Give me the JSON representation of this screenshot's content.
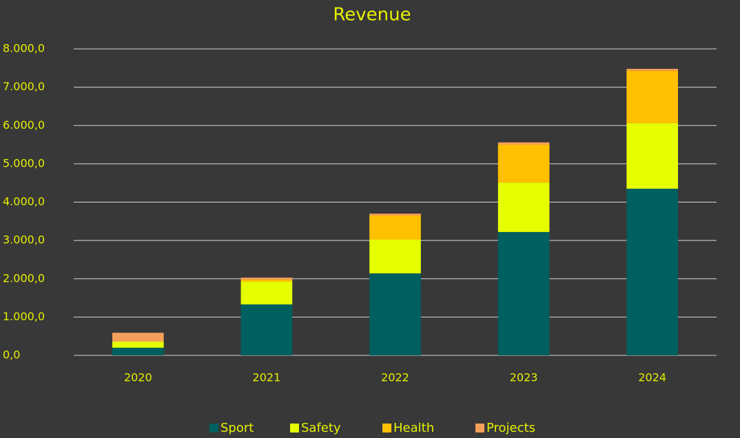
{
  "chart_data": {
    "type": "stacked_bar",
    "title": "Revenue",
    "categories": [
      "2020",
      "2021",
      "2022",
      "2023",
      "2024"
    ],
    "series": [
      {
        "name": "Sport",
        "color": "#005f5f",
        "values": [
          200,
          1330,
          2140,
          3220,
          4350
        ]
      },
      {
        "name": "Safety",
        "color": "#e5ff00",
        "values": [
          160,
          595,
          880,
          1290,
          1710
        ]
      },
      {
        "name": "Health",
        "color": "#ffc000",
        "values": [
          0,
          55,
          630,
          990,
          1370
        ]
      },
      {
        "name": "Projects",
        "color": "#f4a05a",
        "values": [
          230,
          50,
          50,
          60,
          50
        ]
      }
    ],
    "ylim": [
      0,
      8000
    ],
    "yticks": [
      {
        "value": 0,
        "label": "0,0"
      },
      {
        "value": 1000,
        "label": "1.000,0"
      },
      {
        "value": 2000,
        "label": "2.000,0"
      },
      {
        "value": 3000,
        "label": "3.000,0"
      },
      {
        "value": 4000,
        "label": "4.000,0"
      },
      {
        "value": 5000,
        "label": "5.000,0"
      },
      {
        "value": 6000,
        "label": "6.000,0"
      },
      {
        "value": 7000,
        "label": "7.000,0"
      },
      {
        "value": 8000,
        "label": "8.000,0"
      }
    ],
    "grid": true,
    "legend": "bottom"
  }
}
